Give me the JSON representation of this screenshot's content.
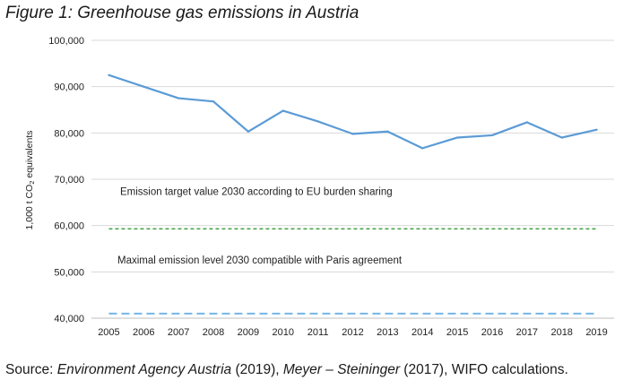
{
  "figure_title": "Figure 1: Greenhouse gas emissions in Austria",
  "source": {
    "prefix": "Source: ",
    "part1": "Environment Agency Austria",
    "mid1": " (2019), ",
    "part2": "Meyer – Steininger",
    "mid2": " (2017), WIFO calculations."
  },
  "chart_data": {
    "type": "line",
    "title": "",
    "xlabel": "",
    "ylabel": "1,000 t CO2 equivalents",
    "ylim": [
      40000,
      100000
    ],
    "y_ticks": [
      "40,000",
      "50,000",
      "60,000",
      "70,000",
      "80,000",
      "90,000",
      "100,000"
    ],
    "y_tick_values": [
      40000,
      50000,
      60000,
      70000,
      80000,
      90000,
      100000
    ],
    "grid": true,
    "x": [
      "2005",
      "2006",
      "2007",
      "2008",
      "2009",
      "2010",
      "2011",
      "2012",
      "2013",
      "2014",
      "2015",
      "2016",
      "2017",
      "2018",
      "2019"
    ],
    "series": [
      {
        "values": [
          92500,
          90000,
          87500,
          86800,
          80300,
          84800,
          82500,
          79800,
          80300,
          76700,
          79000,
          79500,
          82300,
          79000,
          80700
        ],
        "color": "#5b9bd5",
        "style": "solid"
      }
    ],
    "reference_lines": [
      {
        "value": 59300,
        "color": "#4ea64e",
        "style": "dashed",
        "label": "Emission target value 2030 according to EU burden sharing"
      },
      {
        "value": 41000,
        "color": "#74b6e8",
        "style": "dashed",
        "label": "Maximal emission level 2030 compatible with Paris agreement"
      }
    ]
  }
}
